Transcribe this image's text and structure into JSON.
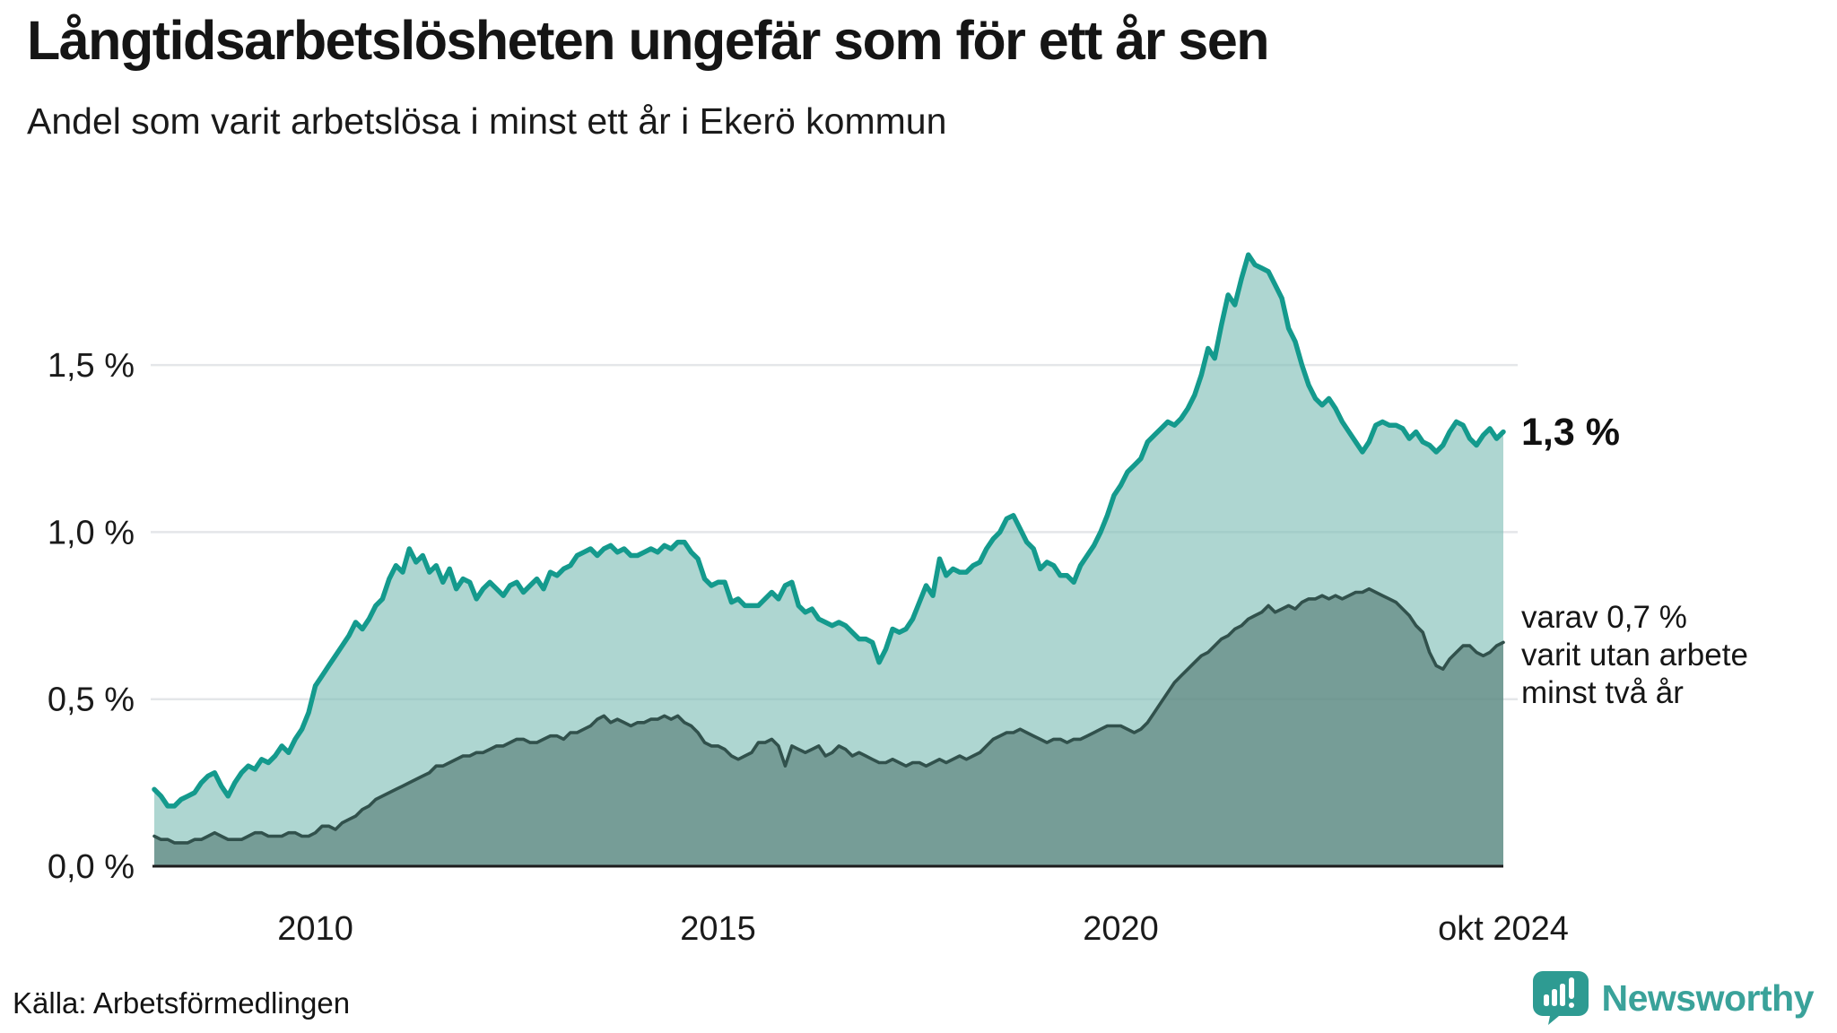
{
  "header": {
    "title": "Långtidsarbetslösheten ungefär som för ett år sen",
    "subtitle": "Andel som varit arbetslösa i minst ett år i Ekerö kommun"
  },
  "annotations": {
    "end_value": "1,3 %",
    "note_lines": [
      "varav 0,7 %",
      "varit utan arbete",
      "minst två år"
    ]
  },
  "source": {
    "text": "Källa: Arbetsförmedlingen"
  },
  "logo": {
    "text": "Newsworthy",
    "bubble_color": "#2e9b92",
    "text_color": "#3aa29a"
  },
  "chart_data": {
    "type": "area",
    "title": "Långtidsarbetslösheten ungefär som för ett år sen",
    "subtitle": "Andel som varit arbetslösa i minst ett år i Ekerö kommun",
    "x_start": "2008-01",
    "x_end": "2024-10",
    "ylim": [
      0,
      1.95
    ],
    "grid": "horizontal",
    "legend_position": "none",
    "colors": {
      "line_total": "#149a8d",
      "fill_total": "rgba(124,189,181,0.62)",
      "line_two_years": "#31514c",
      "fill_two_years": "rgba(77,116,108,0.58)",
      "gridline": "#e4e6e9",
      "axis": "#1c1c1c",
      "text": "#1a1a1a"
    },
    "y_ticks": [
      {
        "value": 0.0,
        "label": "0,0 %"
      },
      {
        "value": 0.5,
        "label": "0,5 %"
      },
      {
        "value": 1.0,
        "label": "1,0 %"
      },
      {
        "value": 1.5,
        "label": "1,5 %"
      }
    ],
    "x_ticks": [
      {
        "month_index": 24,
        "label": "2010"
      },
      {
        "month_index": 84,
        "label": "2015"
      },
      {
        "month_index": 144,
        "label": "2020"
      },
      {
        "month_index": 201,
        "label": "okt 2024"
      }
    ],
    "series": [
      {
        "name": "Andel arbetslösa minst ett år",
        "end_label": "1,3 %",
        "values": [
          0.23,
          0.21,
          0.18,
          0.18,
          0.2,
          0.21,
          0.22,
          0.25,
          0.27,
          0.28,
          0.24,
          0.21,
          0.25,
          0.28,
          0.3,
          0.29,
          0.32,
          0.31,
          0.33,
          0.36,
          0.34,
          0.38,
          0.41,
          0.46,
          0.54,
          0.57,
          0.6,
          0.63,
          0.66,
          0.69,
          0.73,
          0.71,
          0.74,
          0.78,
          0.8,
          0.86,
          0.9,
          0.88,
          0.95,
          0.91,
          0.93,
          0.88,
          0.9,
          0.85,
          0.89,
          0.83,
          0.86,
          0.85,
          0.8,
          0.83,
          0.85,
          0.83,
          0.81,
          0.84,
          0.85,
          0.82,
          0.84,
          0.86,
          0.83,
          0.88,
          0.87,
          0.89,
          0.9,
          0.93,
          0.94,
          0.95,
          0.93,
          0.95,
          0.96,
          0.94,
          0.95,
          0.93,
          0.93,
          0.94,
          0.95,
          0.94,
          0.96,
          0.95,
          0.97,
          0.97,
          0.94,
          0.92,
          0.86,
          0.84,
          0.85,
          0.85,
          0.79,
          0.8,
          0.78,
          0.78,
          0.78,
          0.8,
          0.82,
          0.8,
          0.84,
          0.85,
          0.78,
          0.76,
          0.77,
          0.74,
          0.73,
          0.72,
          0.73,
          0.72,
          0.7,
          0.68,
          0.68,
          0.67,
          0.61,
          0.65,
          0.71,
          0.7,
          0.71,
          0.74,
          0.79,
          0.84,
          0.81,
          0.92,
          0.87,
          0.89,
          0.88,
          0.88,
          0.9,
          0.91,
          0.95,
          0.98,
          1.0,
          1.04,
          1.05,
          1.01,
          0.97,
          0.95,
          0.89,
          0.91,
          0.9,
          0.87,
          0.87,
          0.85,
          0.9,
          0.93,
          0.96,
          1.0,
          1.05,
          1.11,
          1.14,
          1.18,
          1.2,
          1.22,
          1.27,
          1.29,
          1.31,
          1.33,
          1.32,
          1.34,
          1.37,
          1.41,
          1.47,
          1.55,
          1.52,
          1.62,
          1.71,
          1.68,
          1.76,
          1.83,
          1.8,
          1.79,
          1.78,
          1.74,
          1.7,
          1.61,
          1.57,
          1.5,
          1.44,
          1.4,
          1.38,
          1.4,
          1.37,
          1.33,
          1.3,
          1.27,
          1.24,
          1.27,
          1.32,
          1.33,
          1.32,
          1.32,
          1.31,
          1.28,
          1.3,
          1.27,
          1.26,
          1.24,
          1.26,
          1.3,
          1.33,
          1.32,
          1.28,
          1.26,
          1.29,
          1.31,
          1.28,
          1.3
        ]
      },
      {
        "name": "varav arbetslösa minst två år",
        "end_label": "varav 0,7 % varit utan arbete minst två år",
        "values": [
          0.09,
          0.08,
          0.08,
          0.07,
          0.07,
          0.07,
          0.08,
          0.08,
          0.09,
          0.1,
          0.09,
          0.08,
          0.08,
          0.08,
          0.09,
          0.1,
          0.1,
          0.09,
          0.09,
          0.09,
          0.1,
          0.1,
          0.09,
          0.09,
          0.1,
          0.12,
          0.12,
          0.11,
          0.13,
          0.14,
          0.15,
          0.17,
          0.18,
          0.2,
          0.21,
          0.22,
          0.23,
          0.24,
          0.25,
          0.26,
          0.27,
          0.28,
          0.3,
          0.3,
          0.31,
          0.32,
          0.33,
          0.33,
          0.34,
          0.34,
          0.35,
          0.36,
          0.36,
          0.37,
          0.38,
          0.38,
          0.37,
          0.37,
          0.38,
          0.39,
          0.39,
          0.38,
          0.4,
          0.4,
          0.41,
          0.42,
          0.44,
          0.45,
          0.43,
          0.44,
          0.43,
          0.42,
          0.43,
          0.43,
          0.44,
          0.44,
          0.45,
          0.44,
          0.45,
          0.43,
          0.42,
          0.4,
          0.37,
          0.36,
          0.36,
          0.35,
          0.33,
          0.32,
          0.33,
          0.34,
          0.37,
          0.37,
          0.38,
          0.36,
          0.3,
          0.36,
          0.35,
          0.34,
          0.35,
          0.36,
          0.33,
          0.34,
          0.36,
          0.35,
          0.33,
          0.34,
          0.33,
          0.32,
          0.31,
          0.31,
          0.32,
          0.31,
          0.3,
          0.31,
          0.31,
          0.3,
          0.31,
          0.32,
          0.31,
          0.32,
          0.33,
          0.32,
          0.33,
          0.34,
          0.36,
          0.38,
          0.39,
          0.4,
          0.4,
          0.41,
          0.4,
          0.39,
          0.38,
          0.37,
          0.38,
          0.38,
          0.37,
          0.38,
          0.38,
          0.39,
          0.4,
          0.41,
          0.42,
          0.42,
          0.42,
          0.41,
          0.4,
          0.41,
          0.43,
          0.46,
          0.49,
          0.52,
          0.55,
          0.57,
          0.59,
          0.61,
          0.63,
          0.64,
          0.66,
          0.68,
          0.69,
          0.71,
          0.72,
          0.74,
          0.75,
          0.76,
          0.78,
          0.76,
          0.77,
          0.78,
          0.77,
          0.79,
          0.8,
          0.8,
          0.81,
          0.8,
          0.81,
          0.8,
          0.81,
          0.82,
          0.82,
          0.83,
          0.82,
          0.81,
          0.8,
          0.79,
          0.77,
          0.75,
          0.72,
          0.7,
          0.64,
          0.6,
          0.59,
          0.62,
          0.64,
          0.66,
          0.66,
          0.64,
          0.63,
          0.64,
          0.66,
          0.67
        ]
      }
    ]
  }
}
